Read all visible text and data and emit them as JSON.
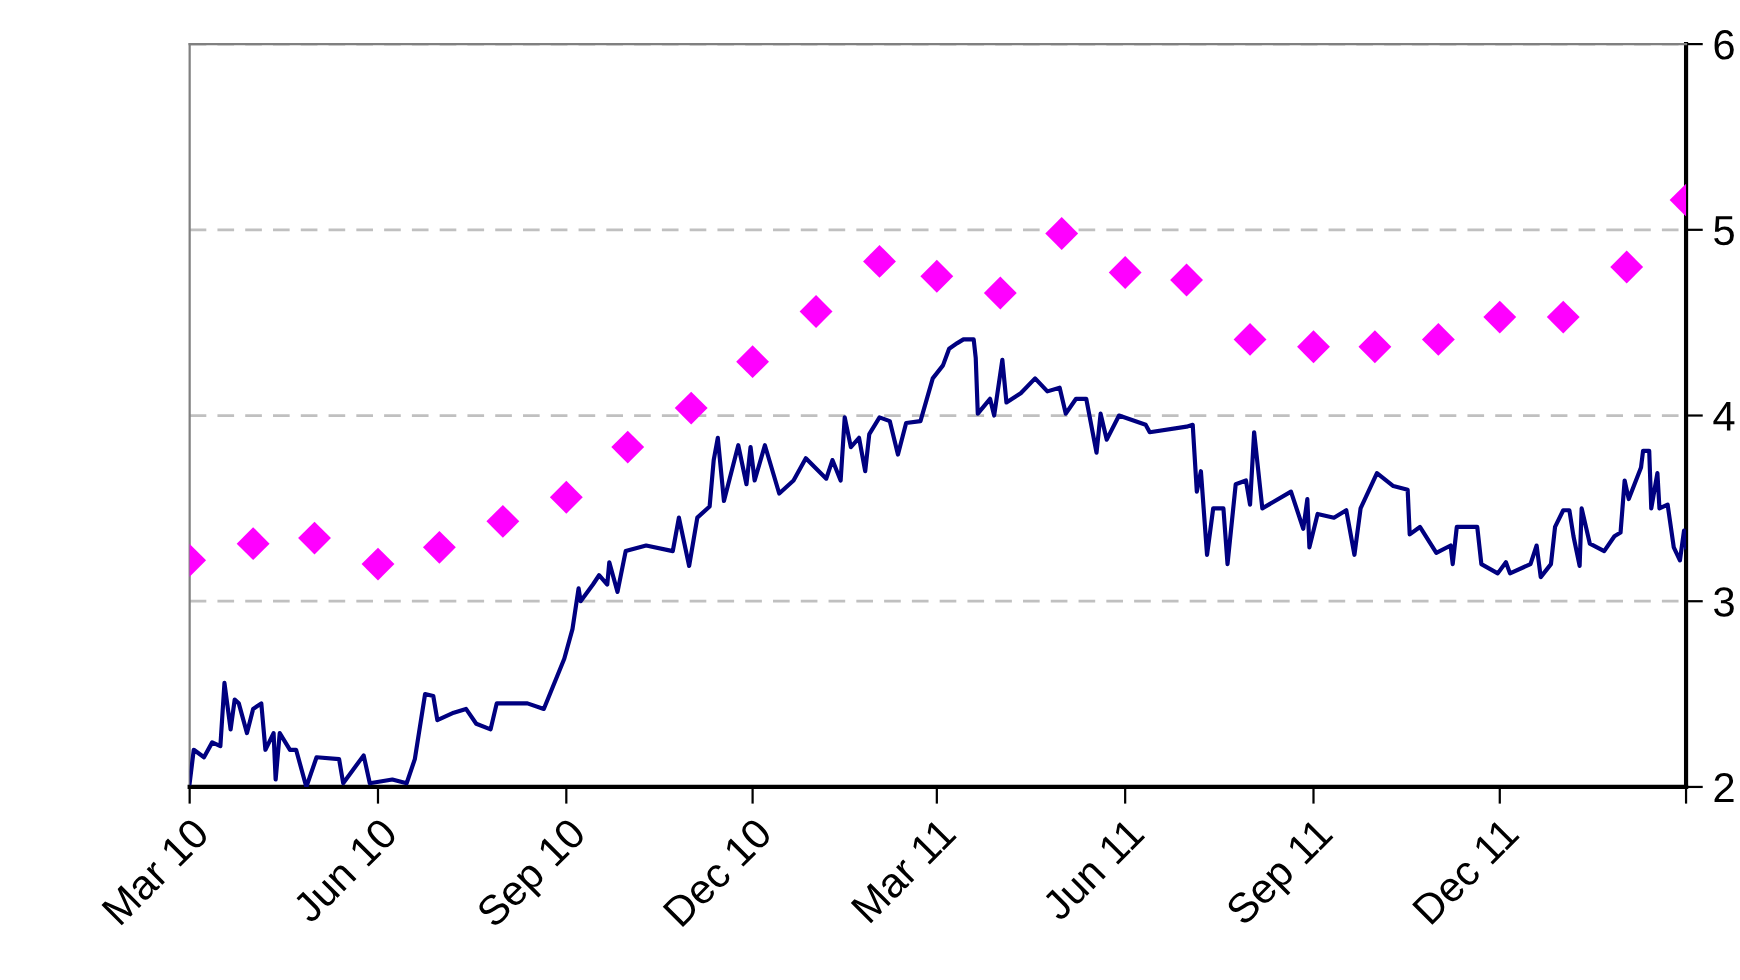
{
  "chart_data": {
    "type": "line",
    "xlim": [
      "2010-03-01",
      "2012-03-01"
    ],
    "xticks": [
      {
        "value": "2010-03-01",
        "label": "Mar 10"
      },
      {
        "value": "2010-06-01",
        "label": "Jun 10"
      },
      {
        "value": "2010-09-01",
        "label": "Sep 10"
      },
      {
        "value": "2010-12-01",
        "label": "Dec 10"
      },
      {
        "value": "2011-03-01",
        "label": "Mar 11"
      },
      {
        "value": "2011-06-01",
        "label": "Jun 11"
      },
      {
        "value": "2011-09-01",
        "label": "Sep 11"
      },
      {
        "value": "2011-12-01",
        "label": "Dec 11"
      },
      {
        "value": "2012-03-01",
        "label": null
      }
    ],
    "ylim": [
      2,
      6
    ],
    "yticks": [
      2,
      3,
      4,
      5,
      6
    ],
    "grid": "y",
    "legend": false,
    "series": [
      {
        "color": "#000080",
        "marker": "none",
        "line_style": "solid",
        "x": [
          "2010-03-01",
          "2010-03-03",
          "2010-03-08",
          "2010-03-12",
          "2010-03-16",
          "2010-03-18",
          "2010-03-21",
          "2010-03-23",
          "2010-03-25",
          "2010-03-29",
          "2010-04-01",
          "2010-04-05",
          "2010-04-07",
          "2010-04-11",
          "2010-04-12",
          "2010-04-14",
          "2010-04-19",
          "2010-04-22",
          "2010-04-27",
          "2010-05-02",
          "2010-05-13",
          "2010-05-15",
          "2010-05-25",
          "2010-05-28",
          "2010-06-08",
          "2010-06-15",
          "2010-06-19",
          "2010-06-24",
          "2010-06-28",
          "2010-06-30",
          "2010-07-08",
          "2010-07-14",
          "2010-07-19",
          "2010-07-26",
          "2010-07-29",
          "2010-08-13",
          "2010-08-21",
          "2010-08-31",
          "2010-09-04",
          "2010-09-07",
          "2010-09-08",
          "2010-09-14",
          "2010-09-17",
          "2010-09-21",
          "2010-09-22",
          "2010-09-26",
          "2010-09-30",
          "2010-10-10",
          "2010-10-23",
          "2010-10-26",
          "2010-10-31",
          "2010-11-04",
          "2010-11-10",
          "2010-11-12",
          "2010-11-14",
          "2010-11-17",
          "2010-11-24",
          "2010-11-28",
          "2010-11-30",
          "2010-12-02",
          "2010-12-07",
          "2010-12-14",
          "2010-12-21",
          "2010-12-27",
          "2011-01-06",
          "2011-01-09",
          "2011-01-13",
          "2011-01-15",
          "2011-01-18",
          "2011-01-22",
          "2011-01-25",
          "2011-01-27",
          "2011-02-01",
          "2011-02-06",
          "2011-02-10",
          "2011-02-14",
          "2011-02-21",
          "2011-02-27",
          "2011-03-04",
          "2011-03-07",
          "2011-03-11",
          "2011-03-14",
          "2011-03-19",
          "2011-03-20",
          "2011-03-21",
          "2011-03-27",
          "2011-03-29",
          "2011-04-02",
          "2011-04-04",
          "2011-04-11",
          "2011-04-18",
          "2011-04-24",
          "2011-04-30",
          "2011-05-03",
          "2011-05-08",
          "2011-05-13",
          "2011-05-18",
          "2011-05-20",
          "2011-05-23",
          "2011-05-29",
          "2011-06-11",
          "2011-06-13",
          "2011-07-01",
          "2011-07-04",
          "2011-07-06",
          "2011-07-08",
          "2011-07-11",
          "2011-07-14",
          "2011-07-19",
          "2011-07-21",
          "2011-07-25",
          "2011-07-30",
          "2011-08-01",
          "2011-08-03",
          "2011-08-07",
          "2011-08-21",
          "2011-08-27",
          "2011-08-29",
          "2011-08-30",
          "2011-09-03",
          "2011-09-11",
          "2011-09-17",
          "2011-09-21",
          "2011-09-24",
          "2011-10-02",
          "2011-10-10",
          "2011-10-17",
          "2011-10-18",
          "2011-10-23",
          "2011-10-31",
          "2011-11-07",
          "2011-11-08",
          "2011-11-10",
          "2011-11-20",
          "2011-11-22",
          "2011-11-30",
          "2011-12-04",
          "2011-12-06",
          "2011-12-16",
          "2011-12-19",
          "2011-12-21",
          "2011-12-26",
          "2011-12-28",
          "2012-01-01",
          "2012-01-04",
          "2012-01-06",
          "2012-01-09",
          "2012-01-10",
          "2012-01-14",
          "2012-01-21",
          "2012-01-26",
          "2012-01-29",
          "2012-01-31",
          "2012-02-02",
          "2012-02-08",
          "2012-02-09",
          "2012-02-12",
          "2012-02-13",
          "2012-02-16",
          "2012-02-17",
          "2012-02-21",
          "2012-02-24",
          "2012-02-27",
          "2012-02-29",
          "2012-03-01"
        ],
        "values": [
          2.02,
          2.2,
          2.16,
          2.24,
          2.22,
          2.56,
          2.31,
          2.47,
          2.45,
          2.29,
          2.42,
          2.45,
          2.2,
          2.29,
          2.04,
          2.29,
          2.2,
          2.2,
          2.0,
          2.16,
          2.15,
          2.02,
          2.17,
          2.02,
          2.04,
          2.02,
          2.15,
          2.5,
          2.49,
          2.36,
          2.4,
          2.42,
          2.34,
          2.31,
          2.45,
          2.45,
          2.42,
          2.69,
          2.85,
          3.07,
          3.0,
          3.09,
          3.14,
          3.09,
          3.21,
          3.05,
          3.27,
          3.3,
          3.27,
          3.45,
          3.19,
          3.45,
          3.51,
          3.76,
          3.88,
          3.54,
          3.84,
          3.63,
          3.83,
          3.65,
          3.84,
          3.58,
          3.65,
          3.77,
          3.66,
          3.76,
          3.65,
          3.99,
          3.83,
          3.88,
          3.7,
          3.9,
          3.99,
          3.97,
          3.79,
          3.96,
          3.97,
          4.2,
          4.27,
          4.36,
          4.39,
          4.41,
          4.41,
          4.31,
          4.01,
          4.09,
          4.0,
          4.3,
          4.07,
          4.12,
          4.2,
          4.13,
          4.15,
          4.01,
          4.09,
          4.09,
          3.8,
          4.01,
          3.87,
          4.0,
          3.95,
          3.91,
          3.94,
          3.95,
          3.59,
          3.7,
          3.25,
          3.5,
          3.5,
          3.2,
          3.63,
          3.65,
          3.52,
          3.91,
          3.5,
          3.59,
          3.39,
          3.55,
          3.29,
          3.47,
          3.45,
          3.49,
          3.25,
          3.5,
          3.69,
          3.62,
          3.6,
          3.36,
          3.4,
          3.26,
          3.3,
          3.2,
          3.4,
          3.4,
          3.2,
          3.15,
          3.21,
          3.15,
          3.2,
          3.3,
          3.13,
          3.2,
          3.4,
          3.49,
          3.49,
          3.35,
          3.19,
          3.5,
          3.31,
          3.27,
          3.35,
          3.37,
          3.65,
          3.55,
          3.72,
          3.81,
          3.81,
          3.5,
          3.69,
          3.5,
          3.52,
          3.29,
          3.22,
          3.38,
          3.29
        ]
      },
      {
        "type": "scatter",
        "color": "#ff00ff",
        "marker": "diamond",
        "x": [
          "2010-03-01",
          "2010-04-01",
          "2010-05-01",
          "2010-06-01",
          "2010-07-01",
          "2010-08-01",
          "2010-09-01",
          "2010-10-01",
          "2010-11-01",
          "2010-12-01",
          "2011-01-01",
          "2011-02-01",
          "2011-03-01",
          "2011-04-01",
          "2011-05-01",
          "2011-06-01",
          "2011-07-01",
          "2011-08-01",
          "2011-09-01",
          "2011-10-01",
          "2011-11-01",
          "2011-12-01",
          "2012-01-01",
          "2012-02-01",
          "2012-03-01"
        ],
        "values": [
          3.22,
          3.31,
          3.34,
          3.2,
          3.29,
          3.43,
          3.56,
          3.83,
          4.04,
          4.29,
          4.56,
          4.83,
          4.75,
          4.66,
          4.98,
          4.77,
          4.73,
          4.41,
          4.37,
          4.37,
          4.41,
          4.53,
          4.53,
          4.8,
          5.16
        ]
      }
    ]
  }
}
